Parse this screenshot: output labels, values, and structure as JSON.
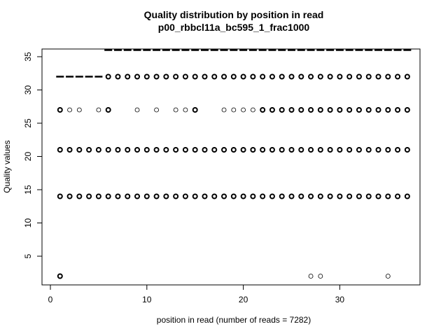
{
  "chart_data": {
    "type": "scatter",
    "title": "Quality distribution by position in read",
    "subtitle": "p00_rbbcl11a_bc595_1_frac1000",
    "xlabel": "position in read (number of reads = 7282)",
    "ylabel": "Quality values",
    "xlim": [
      0,
      37
    ],
    "ylim": [
      1,
      37
    ],
    "xticks": [
      0,
      10,
      20,
      30
    ],
    "yticks": [
      5,
      10,
      15,
      20,
      25,
      30,
      35
    ],
    "grid": false,
    "points": {
      "q14_positions": "all 1-37",
      "q21_positions": "all 1-37",
      "q27_positions": [
        1,
        2,
        3,
        5,
        6,
        9,
        11,
        13,
        14,
        15,
        18,
        19,
        20,
        21,
        22,
        23,
        24,
        25,
        26,
        27,
        28,
        29,
        30,
        31,
        32,
        33,
        34,
        35,
        36,
        37
      ],
      "q32_positions": [
        6,
        7,
        8,
        9,
        10,
        11,
        12,
        13,
        14,
        15,
        16,
        17,
        18,
        19,
        20,
        21,
        22,
        23,
        24,
        25,
        26,
        27,
        28,
        29,
        30,
        31,
        32,
        33,
        34,
        35,
        36,
        37
      ],
      "q2_positions": [
        1,
        27,
        28,
        35
      ]
    },
    "sparse_points": {
      "q27": [
        2,
        3,
        5,
        9,
        11,
        13,
        14,
        18,
        19,
        20,
        21
      ],
      "q2": [
        27,
        28,
        35
      ]
    },
    "median_segments": [
      {
        "from": 1,
        "to": 5,
        "value": 32
      },
      {
        "from": 6,
        "to": 37,
        "value": 36
      }
    ]
  }
}
